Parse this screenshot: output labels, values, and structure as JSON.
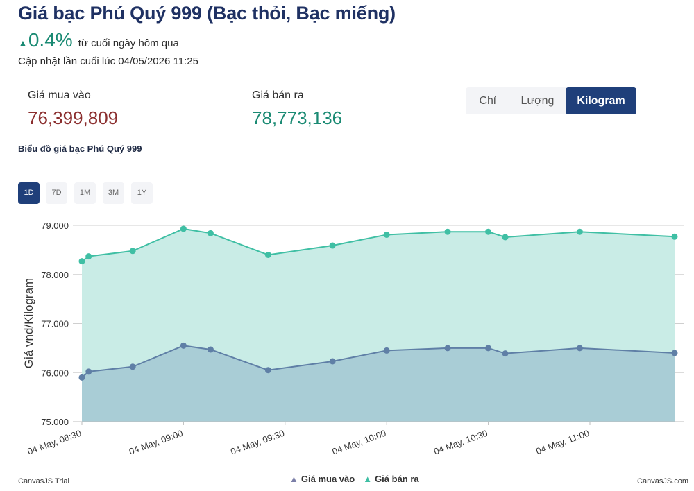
{
  "header": {
    "title": "Giá bạc Phú Quý 999 (Bạc thỏi, Bạc miếng)",
    "change_value": "0.4%",
    "change_text": "từ cuối ngày hôm qua",
    "updated": "Cập nhật lần cuối lúc 04/05/2026 11:25"
  },
  "prices": {
    "buy_label": "Giá mua vào",
    "buy_value": "76,399,809",
    "sell_label": "Giá bán ra",
    "sell_value": "78,773,136"
  },
  "unit_toggle": {
    "options": [
      "Chỉ",
      "Lượng",
      "Kilogram"
    ],
    "selected": "Kilogram"
  },
  "chart_heading": "Biểu đồ giá bạc Phú Quý 999",
  "ranges": {
    "options": [
      "1D",
      "7D",
      "1M",
      "3M",
      "1Y"
    ],
    "selected": "1D"
  },
  "colors": {
    "buy_line": "#5f7fa6",
    "buy_fill": "#a9cdd6",
    "sell_line": "#3fbfa4",
    "sell_fill": "#c9ece6",
    "accent": "#1f3f7a"
  },
  "chart_data": {
    "type": "area",
    "ylabel": "Giá vnd/Kilogram",
    "ylim": [
      75000,
      79000
    ],
    "yticks": [
      "75.000",
      "76.000",
      "77.000",
      "78.000",
      "79.000"
    ],
    "xticks": [
      "04 May, 08:30",
      "04 May, 09:00",
      "04 May, 09:30",
      "04 May, 10:00",
      "04 May, 10:30",
      "04 May, 11:00"
    ],
    "x": [
      "08:30",
      "08:32",
      "08:45",
      "09:00",
      "09:08",
      "09:25",
      "09:44",
      "10:00",
      "10:18",
      "10:30",
      "10:35",
      "10:57",
      "11:25"
    ],
    "series": [
      {
        "name": "Giá mua vào",
        "values": [
          75900,
          76020,
          76120,
          76550,
          76470,
          76050,
          76230,
          76450,
          76500,
          76500,
          76390,
          76500,
          76400
        ]
      },
      {
        "name": "Giá bán ra",
        "values": [
          78270,
          78370,
          78480,
          78930,
          78840,
          78400,
          78590,
          78810,
          78870,
          78870,
          78760,
          78870,
          78770
        ]
      }
    ],
    "grid": true,
    "legend": "bottom-center"
  },
  "credits": {
    "left": "CanvasJS Trial",
    "right": "CanvasJS.com"
  }
}
